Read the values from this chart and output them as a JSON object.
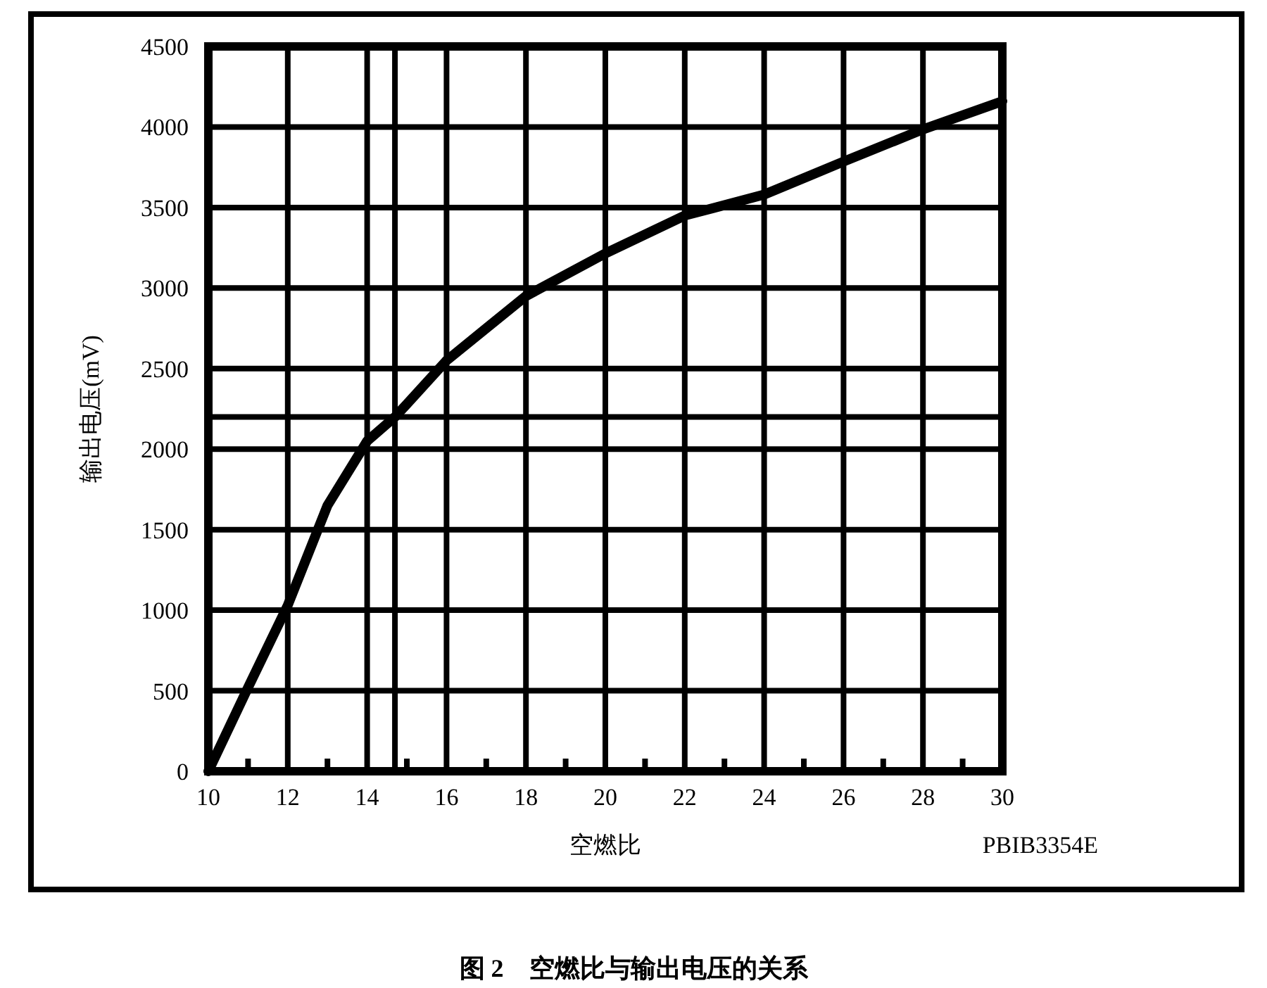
{
  "chart_data": {
    "type": "line",
    "title": "图 2　空燃比与输出电压的关系",
    "xlabel": "空燃比",
    "ylabel": "输出电压(mV)",
    "annotations": [
      "PBIB3354E"
    ],
    "x": [
      10,
      11,
      12,
      13,
      14,
      14.7,
      15,
      16,
      17,
      18,
      20,
      22,
      24,
      26,
      28,
      30
    ],
    "series": [
      {
        "color": "#000000",
        "values": [
          0,
          520,
          1030,
          1650,
          2050,
          2200,
          2280,
          2550,
          2750,
          2950,
          3215,
          3450,
          3580,
          3785,
          3985,
          4160
        ]
      }
    ],
    "xlim": [
      10,
      30
    ],
    "ylim": [
      0,
      4500
    ],
    "xticks": [
      10,
      {
        "value": 11,
        "label": null
      },
      12,
      {
        "value": 13,
        "label": null
      },
      14,
      {
        "value": 15,
        "label": null
      },
      16,
      {
        "value": 17,
        "label": null
      },
      18,
      {
        "value": 19,
        "label": null
      },
      20,
      {
        "value": 21,
        "label": null
      },
      22,
      {
        "value": 23,
        "label": null
      },
      24,
      {
        "value": 25,
        "label": null
      },
      26,
      {
        "value": 27,
        "label": null
      },
      28,
      {
        "value": 29,
        "label": null
      },
      30
    ],
    "yticks": [
      0,
      500,
      1000,
      1500,
      2000,
      2500,
      3000,
      3500,
      4000,
      4500
    ],
    "ref_lines": [
      {
        "axis": "x",
        "value": 14.7,
        "label": null
      },
      {
        "axis": "y",
        "value": 2200,
        "label": null
      }
    ],
    "grid": true,
    "marker": "none",
    "line_style": "solid"
  }
}
